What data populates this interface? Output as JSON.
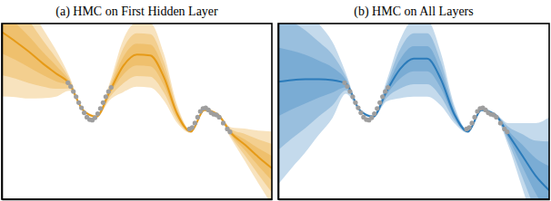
{
  "chart_data": [
    {
      "type": "line",
      "title": "(a) HMC on First Hidden Layer",
      "tick_labels": false,
      "xlim": [
        0,
        10
      ],
      "ylim": [
        -3,
        3
      ],
      "x": [
        0,
        0.5,
        1,
        1.5,
        2,
        2.5,
        3,
        3.5,
        4,
        4.5,
        5,
        5.5,
        6,
        6.5,
        7,
        7.5,
        8,
        8.5,
        9,
        9.5,
        10
      ],
      "series": [
        {
          "type": "area",
          "color": "#e69a17",
          "values": [
            2.71,
            2.39,
            2.04,
            1.65,
            1.3,
            0.95,
            0.05,
            -0.18,
            0.69,
            1.56,
            1.94,
            1.91,
            1.17,
            -0.1,
            -0.69,
            0.05,
            -0.11,
            -0.75,
            -1.14,
            -1.56,
            -1.94
          ],
          "error": [
            2.2,
            1.9,
            1.6,
            1.2,
            0.8,
            0.25,
            0.05,
            0.05,
            0.3,
            0.9,
            1.1,
            1.1,
            0.8,
            0.3,
            0.05,
            0.05,
            0.05,
            0.2,
            0.55,
            0.9,
            1.25
          ]
        },
        {
          "type": "area",
          "color": "#e69a17",
          "values": [
            2.71,
            2.39,
            2.04,
            1.65,
            1.3,
            0.95,
            0.05,
            -0.18,
            0.69,
            1.56,
            1.94,
            1.91,
            1.17,
            -0.1,
            -0.69,
            0.05,
            -0.11,
            -0.75,
            -1.14,
            -1.56,
            -1.94
          ],
          "error": [
            1.47,
            1.27,
            1.07,
            0.8,
            0.53,
            0.17,
            0.03,
            0.03,
            0.2,
            0.6,
            0.73,
            0.73,
            0.53,
            0.2,
            0.03,
            0.03,
            0.03,
            0.13,
            0.37,
            0.6,
            0.83
          ]
        },
        {
          "type": "area",
          "color": "#e69a17",
          "values": [
            2.71,
            2.39,
            2.04,
            1.65,
            1.3,
            0.95,
            0.05,
            -0.18,
            0.69,
            1.56,
            1.94,
            1.91,
            1.17,
            -0.1,
            -0.69,
            0.05,
            -0.11,
            -0.75,
            -1.14,
            -1.56,
            -1.94
          ],
          "error": [
            0.73,
            0.63,
            0.53,
            0.4,
            0.27,
            0.08,
            0.02,
            0.02,
            0.1,
            0.3,
            0.37,
            0.37,
            0.27,
            0.1,
            0.02,
            0.02,
            0.02,
            0.07,
            0.18,
            0.3,
            0.42
          ]
        },
        {
          "type": "line",
          "color": "#e69a17",
          "values": [
            2.71,
            2.39,
            2.04,
            1.65,
            1.3,
            0.95,
            0.05,
            -0.18,
            0.69,
            1.56,
            1.94,
            1.91,
            1.17,
            -0.1,
            -0.69,
            0.05,
            -0.11,
            -0.75,
            -1.14,
            -1.56,
            -1.94
          ]
        },
        {
          "type": "scatter",
          "color": "#9e9e9e",
          "marker": "circle",
          "x": [
            2.45,
            2.55,
            2.65,
            2.75,
            2.85,
            2.95,
            3.05,
            3.15,
            3.25,
            3.35,
            3.45,
            3.55,
            3.65,
            3.75,
            3.85,
            3.95,
            4.05,
            6.95,
            7.05,
            7.15,
            7.25,
            7.35,
            7.45,
            7.55,
            7.65,
            7.75,
            7.85,
            7.95,
            8.05,
            8.2,
            8.35,
            8.45
          ],
          "values": [
            0.98,
            0.85,
            0.68,
            0.5,
            0.3,
            0.12,
            -0.05,
            -0.2,
            -0.28,
            -0.3,
            -0.22,
            -0.08,
            0.1,
            0.3,
            0.5,
            0.68,
            0.82,
            -0.6,
            -0.55,
            -0.4,
            -0.2,
            0.0,
            0.1,
            0.12,
            0.05,
            -0.05,
            -0.1,
            -0.12,
            -0.2,
            -0.4,
            -0.6,
            -0.7
          ]
        }
      ]
    },
    {
      "type": "line",
      "title": "(b) HMC on All Layers",
      "tick_labels": false,
      "xlim": [
        0,
        10
      ],
      "ylim": [
        -3,
        3
      ],
      "x": [
        0,
        0.5,
        1,
        1.5,
        2,
        2.5,
        3,
        3.5,
        4,
        4.5,
        5,
        5.5,
        6,
        6.5,
        7,
        7.5,
        8,
        8.5,
        9,
        9.5,
        10
      ],
      "series": [
        {
          "type": "area",
          "color": "#2b7bba",
          "values": [
            1.01,
            1.07,
            1.1,
            1.1,
            1.07,
            0.95,
            0.05,
            -0.18,
            0.69,
            1.45,
            1.8,
            1.8,
            1.1,
            -0.1,
            -0.69,
            0.05,
            -0.11,
            -0.8,
            -1.5,
            -2.2,
            -2.7
          ],
          "error": [
            3.5,
            3.0,
            2.5,
            1.9,
            1.3,
            0.35,
            0.05,
            0.05,
            0.35,
            1.0,
            1.3,
            1.3,
            0.9,
            0.3,
            0.05,
            0.05,
            0.05,
            0.4,
            1.1,
            1.8,
            2.5
          ]
        },
        {
          "type": "area",
          "color": "#2b7bba",
          "values": [
            1.01,
            1.07,
            1.1,
            1.1,
            1.07,
            0.95,
            0.05,
            -0.18,
            0.69,
            1.45,
            1.8,
            1.8,
            1.1,
            -0.1,
            -0.69,
            0.05,
            -0.11,
            -0.8,
            -1.5,
            -2.2,
            -2.7
          ],
          "error": [
            2.33,
            2.0,
            1.67,
            1.27,
            0.87,
            0.23,
            0.03,
            0.03,
            0.23,
            0.67,
            0.87,
            0.87,
            0.6,
            0.2,
            0.03,
            0.03,
            0.03,
            0.27,
            0.73,
            1.2,
            1.67
          ]
        },
        {
          "type": "area",
          "color": "#2b7bba",
          "values": [
            1.01,
            1.07,
            1.1,
            1.1,
            1.07,
            0.95,
            0.05,
            -0.18,
            0.69,
            1.45,
            1.8,
            1.8,
            1.1,
            -0.1,
            -0.69,
            0.05,
            -0.11,
            -0.8,
            -1.5,
            -2.2,
            -2.7
          ],
          "error": [
            1.17,
            1.0,
            0.83,
            0.63,
            0.43,
            0.12,
            0.02,
            0.02,
            0.12,
            0.33,
            0.43,
            0.43,
            0.3,
            0.1,
            0.02,
            0.02,
            0.02,
            0.13,
            0.37,
            0.6,
            0.83
          ]
        },
        {
          "type": "line",
          "color": "#2b7bba",
          "values": [
            1.01,
            1.07,
            1.1,
            1.1,
            1.07,
            0.95,
            0.05,
            -0.18,
            0.69,
            1.45,
            1.8,
            1.8,
            1.1,
            -0.1,
            -0.69,
            0.05,
            -0.11,
            -0.8,
            -1.5,
            -2.2,
            -2.7
          ]
        },
        {
          "type": "scatter",
          "color": "#9e9e9e",
          "marker": "circle",
          "x": [
            2.45,
            2.55,
            2.65,
            2.75,
            2.85,
            2.95,
            3.05,
            3.15,
            3.25,
            3.35,
            3.45,
            3.55,
            3.65,
            3.75,
            3.85,
            3.95,
            4.05,
            6.95,
            7.05,
            7.15,
            7.25,
            7.35,
            7.45,
            7.55,
            7.65,
            7.75,
            7.85,
            7.95,
            8.05,
            8.2,
            8.35,
            8.45
          ],
          "values": [
            0.98,
            0.85,
            0.68,
            0.5,
            0.3,
            0.12,
            -0.05,
            -0.2,
            -0.28,
            -0.3,
            -0.22,
            -0.08,
            0.1,
            0.3,
            0.5,
            0.68,
            0.82,
            -0.6,
            -0.55,
            -0.4,
            -0.2,
            0.0,
            0.1,
            0.12,
            0.05,
            -0.05,
            -0.1,
            -0.12,
            -0.2,
            -0.4,
            -0.6,
            -0.7
          ]
        }
      ]
    }
  ]
}
